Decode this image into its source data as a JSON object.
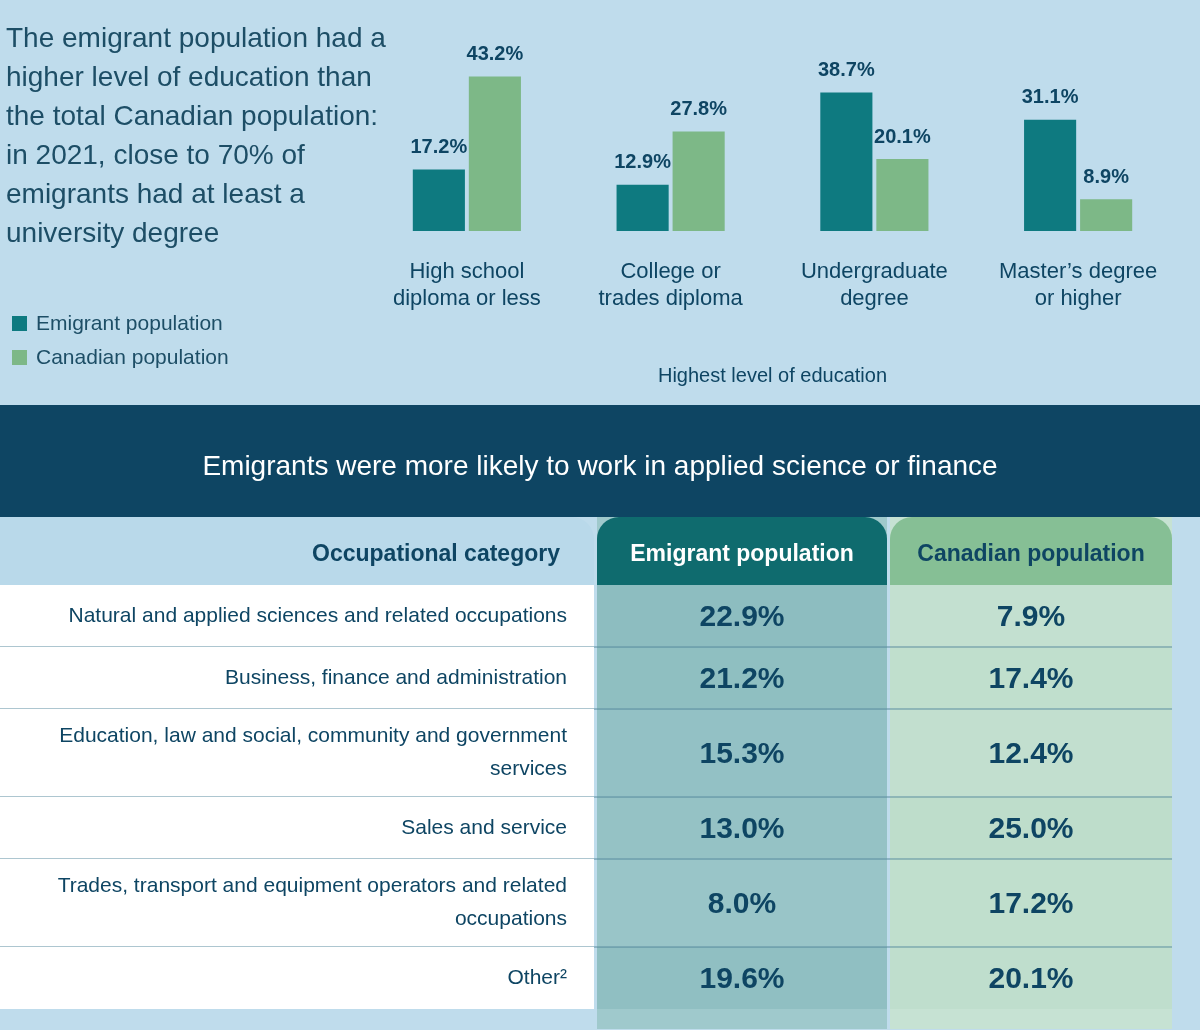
{
  "chart_data": [
    {
      "type": "bar",
      "title": "The emigrant population had a higher level of education than the total Canadian population: in 2021, close to 70% of emigrants had at least a university degree",
      "xlabel": "Highest level of education",
      "categories": [
        "High school diploma or less",
        "College or trades diploma",
        "Undergraduate degree",
        "Master’s degree or higher"
      ],
      "legend": "left",
      "grid": false,
      "series": [
        {
          "name": "Emigrant population",
          "color": "#0e7a80",
          "values": [
            17.2,
            12.9,
            38.7,
            31.1
          ],
          "value_labels": [
            "17.2%",
            "12.9%",
            "38.7%",
            "31.1%"
          ]
        },
        {
          "name": "Canadian population",
          "color": "#7db887",
          "values": [
            43.2,
            27.8,
            20.1,
            8.9
          ],
          "value_labels": [
            "43.2%",
            "27.8%",
            "20.1%",
            "8.9%"
          ]
        }
      ]
    },
    {
      "type": "heatmap",
      "title": "Emigrants were more likely to work in applied science or finance",
      "ylabel": "Occupational category",
      "categories": [
        "Emigrant population",
        "Canadian population"
      ],
      "y_categories": [
        "Natural and applied sciences and related occupations",
        "Business, finance and administration",
        "Education, law and social, community and government services",
        "Sales and service",
        "Trades, transport and equipment operators and related occupations",
        "Other²"
      ],
      "cells": [
        [
          22.9,
          7.9
        ],
        [
          21.2,
          17.4
        ],
        [
          15.3,
          12.4
        ],
        [
          13.0,
          25.0
        ],
        [
          8.0,
          17.2
        ],
        [
          19.6,
          20.1
        ]
      ],
      "cell_labels": [
        [
          "22.9%",
          "7.9%"
        ],
        [
          "21.2%",
          "17.4%"
        ],
        [
          "15.3%",
          "12.4%"
        ],
        [
          "13.0%",
          "25.0%"
        ],
        [
          "8.0%",
          "17.2%"
        ],
        [
          "19.6%",
          "20.1%"
        ]
      ]
    }
  ]
}
